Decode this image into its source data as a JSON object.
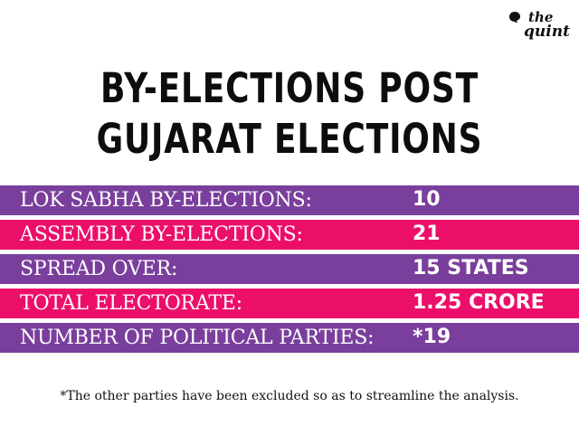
{
  "logo": {
    "line1": "the",
    "line2": "quint"
  },
  "title": {
    "line1": "BY-ELECTIONS POST",
    "line2": "GUJARAT ELECTIONS"
  },
  "colors": {
    "purple": "#7a3f9c",
    "pink": "#ec0f6a"
  },
  "rows": [
    {
      "label": "LOK SABHA BY-ELECTIONS:",
      "value": "10",
      "color": "purple"
    },
    {
      "label": "ASSEMBLY BY-ELECTIONS:",
      "value": "21",
      "color": "pink"
    },
    {
      "label": "SPREAD OVER:",
      "value": "15 STATES",
      "color": "purple"
    },
    {
      "label": "TOTAL ELECTORATE:",
      "value": "1.25 CRORE",
      "color": "pink"
    },
    {
      "label": "NUMBER OF POLITICAL PARTIES:",
      "value": "*19",
      "color": "purple"
    }
  ],
  "footnote": "*The other parties have been excluded so as to streamline the analysis."
}
